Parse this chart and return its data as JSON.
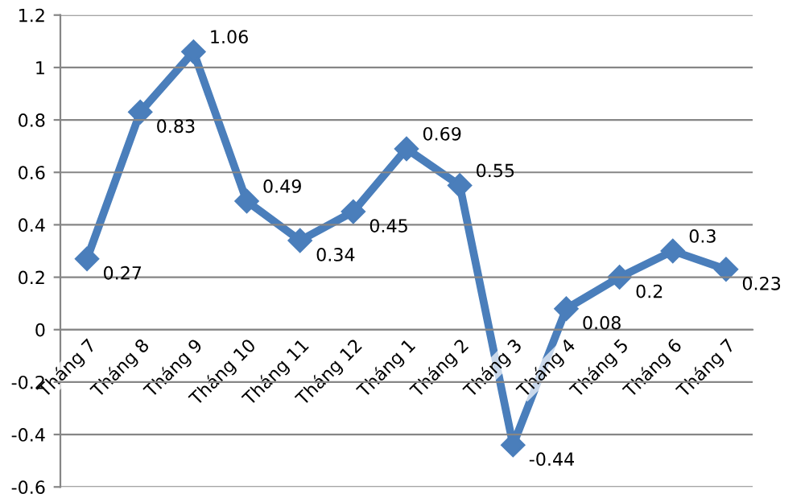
{
  "chart_data": {
    "type": "line",
    "categories": [
      "Tháng 7",
      "Tháng 8",
      "Tháng 9",
      "Tháng 10",
      "Tháng 11",
      "Tháng 12",
      "Tháng 1",
      "Tháng 2",
      "Tháng 3",
      "Tháng 4",
      "Tháng 5",
      "Tháng 6",
      "Tháng 7"
    ],
    "series": [
      {
        "color": "#4a7ebb",
        "values": [
          0.27,
          0.83,
          1.06,
          0.49,
          0.34,
          0.45,
          0.69,
          0.55,
          -0.44,
          0.08,
          0.2,
          0.3,
          0.23
        ]
      }
    ],
    "ylim": [
      -0.6,
      1.2
    ],
    "yticks": [
      -0.6,
      -0.4,
      -0.2,
      0,
      0.2,
      0.4,
      0.6,
      0.8,
      1,
      1.2
    ],
    "grid": "y",
    "marker": "diamond",
    "line_style": "solid",
    "data_labels": true
  }
}
